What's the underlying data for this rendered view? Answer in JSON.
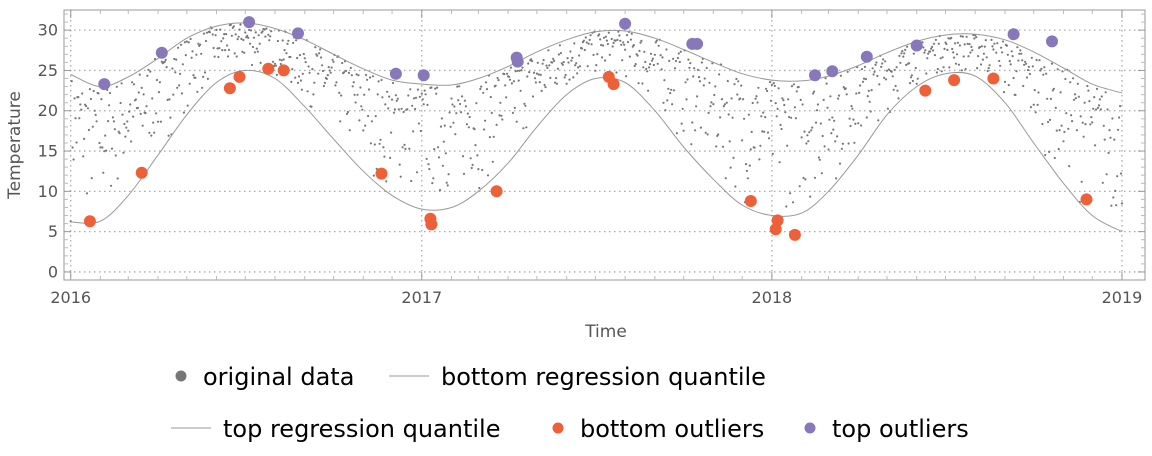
{
  "chart_data": {
    "type": "scatter",
    "xlabel": "Time",
    "ylabel": "Temperature",
    "xlim": [
      "2015-12-25",
      "2019-01-25"
    ],
    "ylim": [
      -1,
      32.5
    ],
    "x_ticks": [
      "2016",
      "2017",
      "2018",
      "2019"
    ],
    "y_ticks": [
      "0",
      "5",
      "10",
      "15",
      "20",
      "25",
      "30"
    ],
    "grid": true,
    "legend_position": "bottom",
    "legend": [
      {
        "label": "original data",
        "marker": "dot",
        "color": "#777777"
      },
      {
        "label": "bottom regression quantile",
        "marker": "line",
        "color": "#999999"
      },
      {
        "label": "top regression quantile",
        "marker": "line",
        "color": "#999999"
      },
      {
        "label": "bottom outliers",
        "marker": "dot",
        "color": "#EE6037"
      },
      {
        "label": "top outliers",
        "marker": "dot",
        "color": "#8877BB"
      }
    ],
    "series": [
      {
        "name": "top regression quantile",
        "type": "line",
        "color": "#999999",
        "points": [
          [
            "2016-01-01",
            24.5
          ],
          [
            "2016-02-01",
            23.0
          ],
          [
            "2016-03-01",
            24.2
          ],
          [
            "2016-04-01",
            26.5
          ],
          [
            "2016-05-01",
            29.0
          ],
          [
            "2016-06-01",
            30.5
          ],
          [
            "2016-07-01",
            30.9
          ],
          [
            "2016-08-01",
            30.2
          ],
          [
            "2016-09-01",
            28.8
          ],
          [
            "2016-10-01",
            27.0
          ],
          [
            "2016-11-01",
            25.2
          ],
          [
            "2016-12-01",
            23.8
          ],
          [
            "2017-01-01",
            23.3
          ],
          [
            "2017-02-01",
            23.2
          ],
          [
            "2017-03-01",
            24.0
          ],
          [
            "2017-04-01",
            25.5
          ],
          [
            "2017-05-01",
            27.3
          ],
          [
            "2017-06-01",
            28.8
          ],
          [
            "2017-07-01",
            29.8
          ],
          [
            "2017-08-01",
            29.9
          ],
          [
            "2017-09-01",
            29.0
          ],
          [
            "2017-10-01",
            27.6
          ],
          [
            "2017-11-01",
            26.0
          ],
          [
            "2017-12-01",
            24.6
          ],
          [
            "2018-01-01",
            23.8
          ],
          [
            "2018-02-01",
            23.7
          ],
          [
            "2018-03-01",
            24.3
          ],
          [
            "2018-04-01",
            25.6
          ],
          [
            "2018-05-01",
            27.2
          ],
          [
            "2018-06-01",
            28.6
          ],
          [
            "2018-07-01",
            29.4
          ],
          [
            "2018-08-01",
            29.5
          ],
          [
            "2018-09-01",
            28.8
          ],
          [
            "2018-10-01",
            27.3
          ],
          [
            "2018-11-01",
            25.3
          ],
          [
            "2018-12-01",
            23.3
          ],
          [
            "2019-01-01",
            22.2
          ]
        ]
      },
      {
        "name": "bottom regression quantile",
        "type": "line",
        "color": "#999999",
        "points": [
          [
            "2016-01-01",
            6.2
          ],
          [
            "2016-02-01",
            6.3
          ],
          [
            "2016-03-01",
            9.5
          ],
          [
            "2016-04-01",
            14.5
          ],
          [
            "2016-05-01",
            19.5
          ],
          [
            "2016-06-01",
            23.5
          ],
          [
            "2016-07-01",
            25.0
          ],
          [
            "2016-08-01",
            24.0
          ],
          [
            "2016-09-01",
            20.5
          ],
          [
            "2016-10-01",
            16.5
          ],
          [
            "2016-11-01",
            12.5
          ],
          [
            "2016-12-01",
            9.5
          ],
          [
            "2017-01-01",
            7.8
          ],
          [
            "2017-02-01",
            8.0
          ],
          [
            "2017-03-01",
            10.0
          ],
          [
            "2017-04-01",
            13.5
          ],
          [
            "2017-05-01",
            18.0
          ],
          [
            "2017-06-01",
            22.0
          ],
          [
            "2017-07-01",
            24.0
          ],
          [
            "2017-08-01",
            23.5
          ],
          [
            "2017-09-01",
            20.0
          ],
          [
            "2017-10-01",
            15.5
          ],
          [
            "2017-11-01",
            11.5
          ],
          [
            "2017-12-01",
            8.3
          ],
          [
            "2018-01-01",
            7.0
          ],
          [
            "2018-02-01",
            7.3
          ],
          [
            "2018-03-01",
            10.0
          ],
          [
            "2018-04-01",
            14.5
          ],
          [
            "2018-05-01",
            19.5
          ],
          [
            "2018-06-01",
            23.0
          ],
          [
            "2018-07-01",
            24.6
          ],
          [
            "2018-08-01",
            24.3
          ],
          [
            "2018-09-01",
            21.0
          ],
          [
            "2018-10-01",
            16.0
          ],
          [
            "2018-11-01",
            11.0
          ],
          [
            "2018-12-01",
            7.0
          ],
          [
            "2019-01-01",
            5.0
          ]
        ]
      },
      {
        "name": "bottom outliers",
        "type": "scatter",
        "color": "#EE6037",
        "points": [
          [
            "2016-01-21",
            6.3
          ],
          [
            "2016-03-15",
            12.3
          ],
          [
            "2016-06-15",
            22.8
          ],
          [
            "2016-06-25",
            24.2
          ],
          [
            "2016-07-25",
            25.2
          ],
          [
            "2016-08-10",
            25.0
          ],
          [
            "2016-11-20",
            12.2
          ],
          [
            "2017-01-10",
            6.6
          ],
          [
            "2017-01-11",
            5.9
          ],
          [
            "2017-03-20",
            10.0
          ],
          [
            "2017-07-15",
            24.2
          ],
          [
            "2017-07-20",
            23.3
          ],
          [
            "2017-12-10",
            8.8
          ],
          [
            "2018-01-05",
            5.3
          ],
          [
            "2018-01-07",
            6.4
          ],
          [
            "2018-01-25",
            4.6
          ],
          [
            "2018-06-10",
            22.5
          ],
          [
            "2018-07-10",
            23.8
          ],
          [
            "2018-08-20",
            24.0
          ],
          [
            "2018-11-25",
            9.0
          ]
        ]
      },
      {
        "name": "top outliers",
        "type": "scatter",
        "color": "#8877BB",
        "points": [
          [
            "2016-02-05",
            23.3
          ],
          [
            "2016-04-05",
            27.2
          ],
          [
            "2016-07-05",
            31.0
          ],
          [
            "2016-08-25",
            29.6
          ],
          [
            "2016-12-05",
            24.6
          ],
          [
            "2017-01-03",
            24.4
          ],
          [
            "2017-04-10",
            26.6
          ],
          [
            "2017-04-11",
            26.1
          ],
          [
            "2017-08-01",
            30.8
          ],
          [
            "2017-10-10",
            28.3
          ],
          [
            "2017-10-15",
            28.3
          ],
          [
            "2018-02-15",
            24.4
          ],
          [
            "2018-03-05",
            24.9
          ],
          [
            "2018-04-10",
            26.7
          ],
          [
            "2018-06-01",
            28.1
          ],
          [
            "2018-09-10",
            29.5
          ],
          [
            "2018-10-20",
            28.6
          ]
        ]
      }
    ]
  }
}
